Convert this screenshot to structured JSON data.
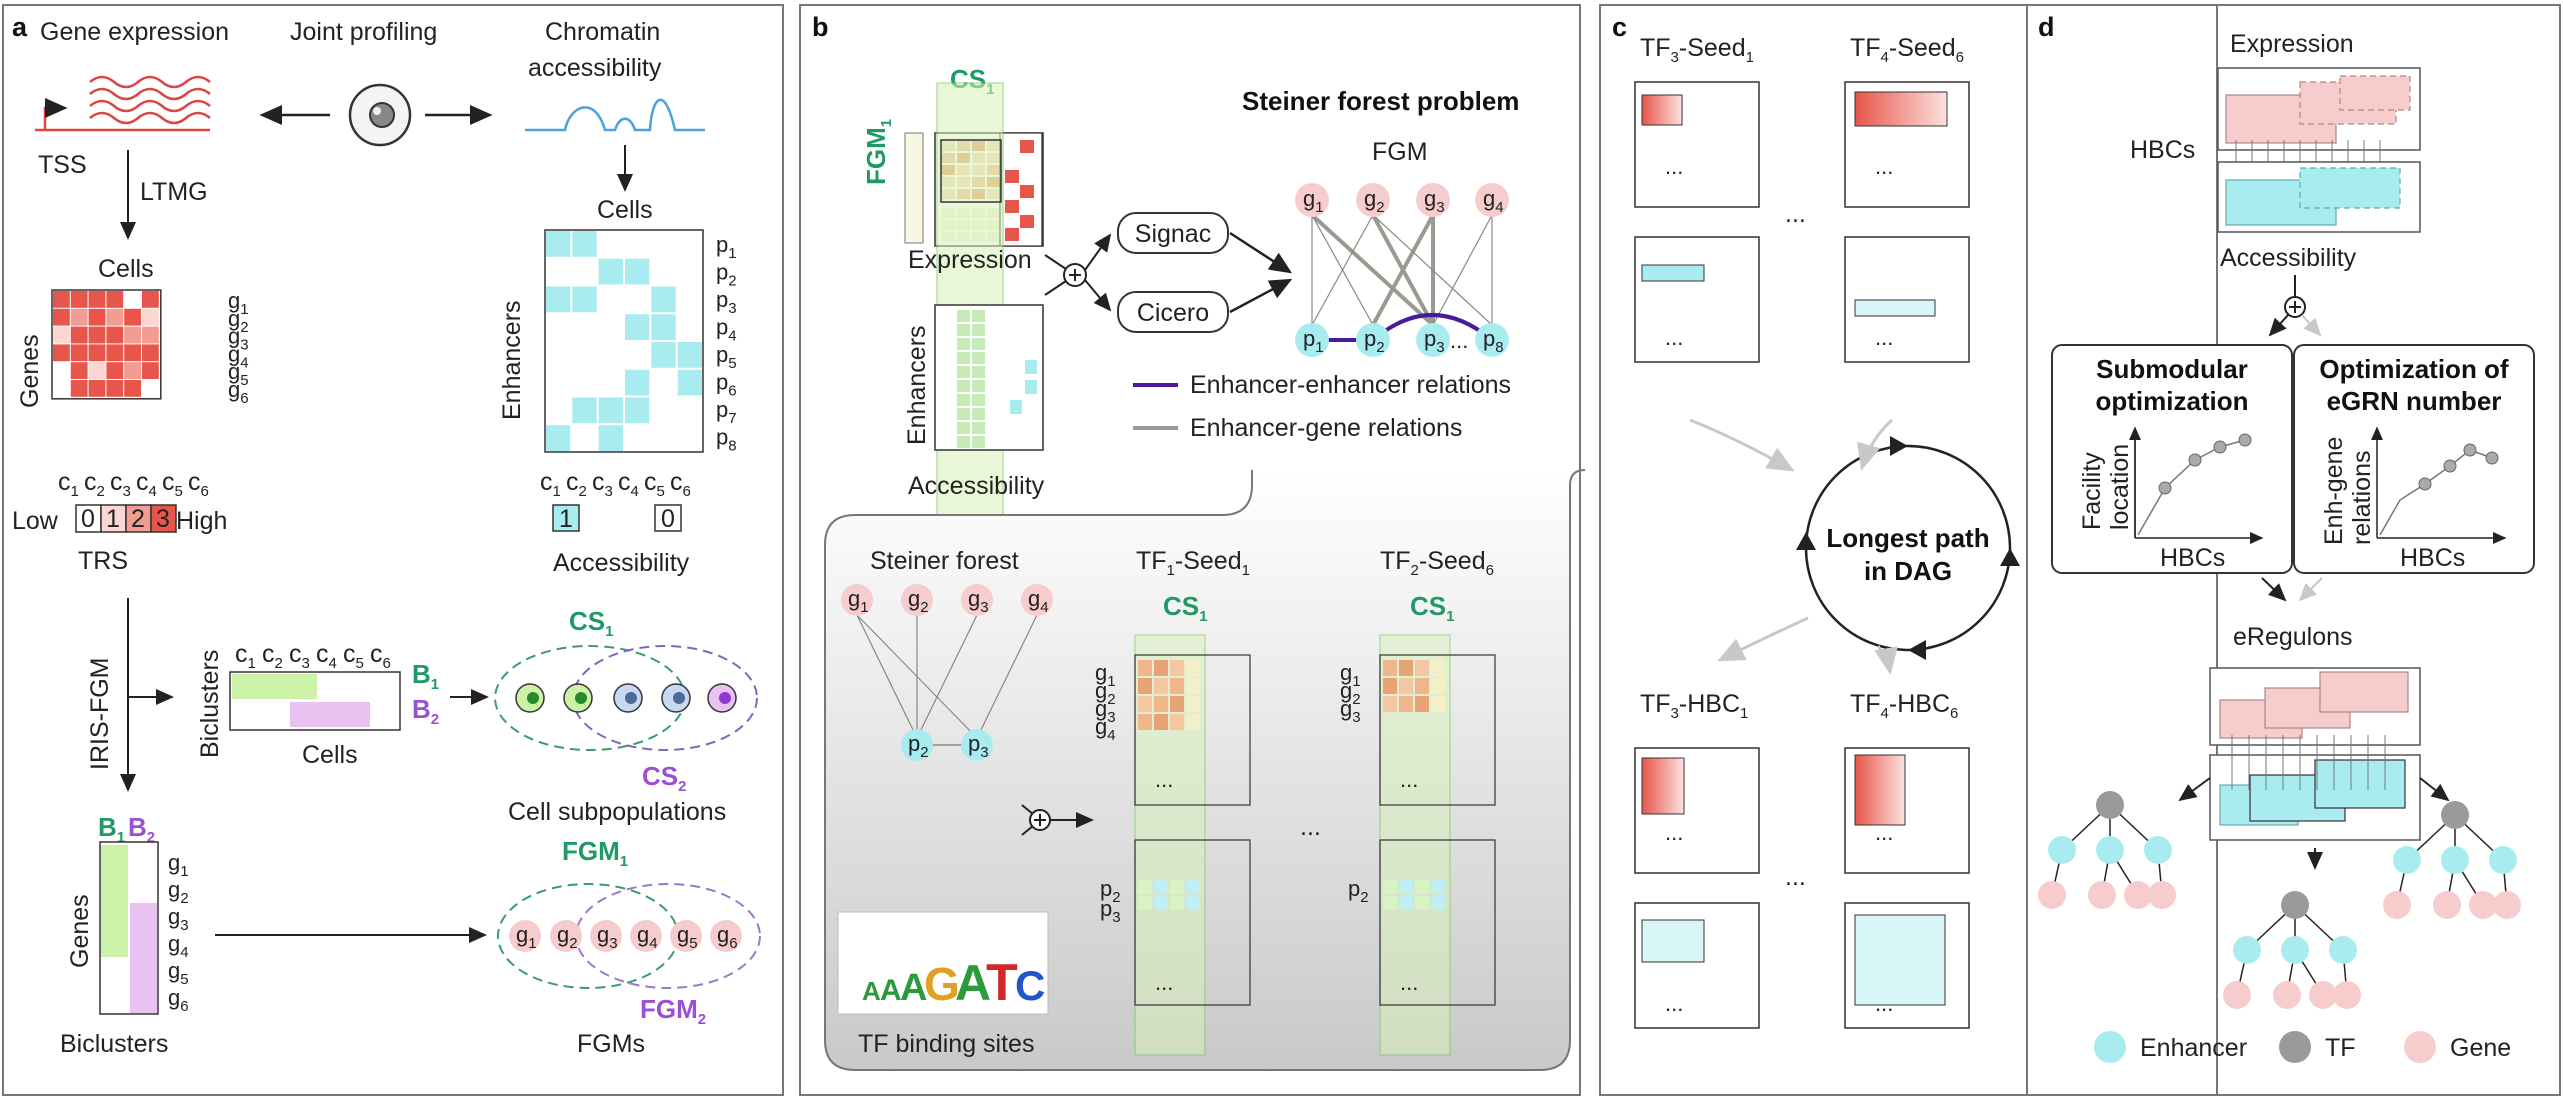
{
  "panels": {
    "a": "a",
    "b": "b",
    "c": "c",
    "d": "d"
  },
  "a": {
    "gene_expression": "Gene expression",
    "joint_profiling": "Joint profiling",
    "chromatin_accessibility_1": "Chromatin",
    "chromatin_accessibility_2": "accessibility",
    "tss": "TSS",
    "ltmg": "LTMG",
    "cells": "Cells",
    "genes": "Genes",
    "cells_right": "Cells",
    "enhancers": "Enhancers",
    "low": "Low",
    "high": "High",
    "trs": "TRS",
    "legend_vals": [
      "0",
      "1",
      "2",
      "3"
    ],
    "acc_1": "1",
    "acc_0": "0",
    "accessibility": "Accessibility",
    "irisfgm": "IRIS-FGM",
    "biclusters_rot": "Biclusters",
    "cells_bic": "Cells",
    "b1": "B",
    "b2": "B",
    "cs1": "CS",
    "cs2": "CS",
    "cell_subpops": "Cell subpopulations",
    "fgm1": "FGM",
    "fgm2": "FGM",
    "fgms": "FGMs",
    "biclusters": "Biclusters",
    "genes_bottom": "Genes",
    "gene_labels": [
      "g",
      "g",
      "g",
      "g",
      "g",
      "g"
    ],
    "peak_labels": [
      "p",
      "p",
      "p",
      "p",
      "p",
      "p",
      "p",
      "p"
    ],
    "cell_labels": [
      "c",
      "c",
      "c",
      "c",
      "c",
      "c"
    ]
  },
  "b": {
    "cs1": "CS",
    "fgm1": "FGM",
    "expression": "Expression",
    "enhancers": "Enhancers",
    "accessibility": "Accessibility",
    "signac": "Signac",
    "cicero": "Cicero",
    "steiner_title": "Steiner forest problem",
    "fgm": "FGM",
    "ee_rel": "Enhancer-enhancer relations",
    "eg_rel": "Enhancer-gene relations",
    "steiner_forest": "Steiner forest",
    "tf1": "TF",
    "seed1": "-Seed",
    "tf2": "TF",
    "seed6": "-Seed",
    "dots": "...",
    "tfbs": "TF binding sites",
    "motif": "AAAGATCAAAG"
  },
  "c": {
    "tf3_seed": "TF",
    "tf4_seed": "TF",
    "seed": "-Seed",
    "longest1": "Longest path",
    "longest2": "in DAG",
    "tf3_hbc": "TF",
    "tf4_hbc": "TF",
    "hbc": "-HBC",
    "dots": "..."
  },
  "d": {
    "expression": "Expression",
    "hbcs": "HBCs",
    "accessibility": "Accessibility",
    "submod1": "Submodular",
    "submod2": "optimization",
    "opt1": "Optimization of",
    "opt2": "eGRN number",
    "facility1": "Facility",
    "facility2": "location",
    "enh1": "Enh-gene",
    "enh2": "relations",
    "hbcs_axis": "HBCs",
    "eregulons": "eRegulons",
    "legend_enhancer": "Enhancer",
    "legend_tf": "TF",
    "legend_gene": "Gene"
  },
  "colors": {
    "green_text": "#1e9a64",
    "purple_text": "#9b4fd6",
    "red": "#e8554a",
    "cyan": "#a8ecf0",
    "pink": "#f6cccc",
    "grey_node": "#9a9a9a",
    "enh_enh": "#4a1a9a",
    "enh_gene": "#9a9a90"
  }
}
